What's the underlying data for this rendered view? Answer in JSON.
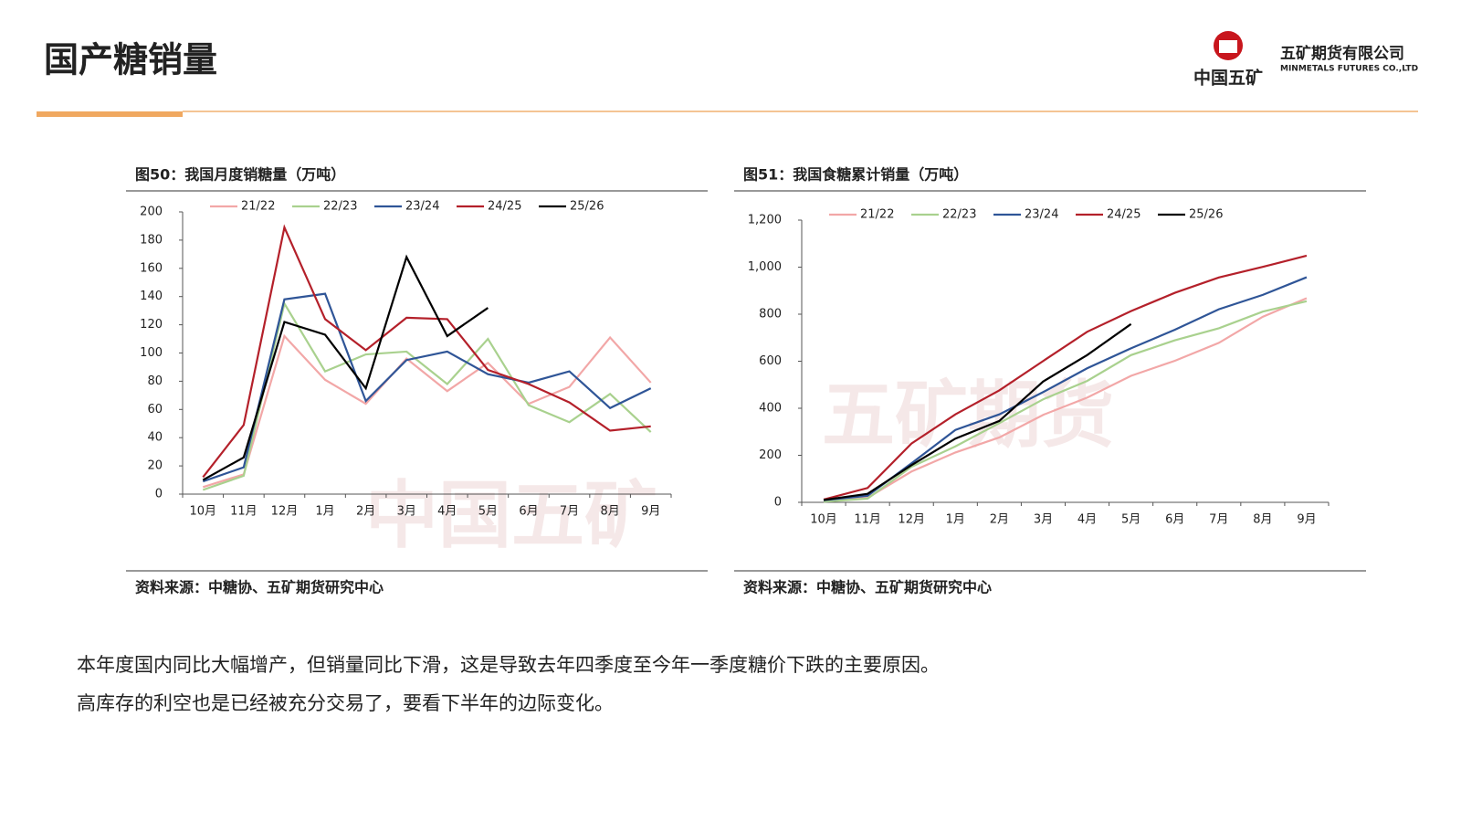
{
  "page_title": "国产糖销量",
  "logo": {
    "cn": "中国五矿",
    "company": "五矿期货有限公司",
    "company_en": "MINMETALS FUTURES CO.,LTD"
  },
  "watermarks": [
    "中国五矿",
    "五矿期货"
  ],
  "chart_data": [
    {
      "type": "line",
      "title": "图50：我国月度销糖量（万吨）",
      "source": "资料来源：中糖协、五矿期货研究中心",
      "categories": [
        "10月",
        "11月",
        "12月",
        "1月",
        "2月",
        "3月",
        "4月",
        "5月",
        "6月",
        "7月",
        "8月",
        "9月"
      ],
      "ylim": [
        0,
        200
      ],
      "yticks": [
        0,
        20,
        40,
        60,
        80,
        100,
        120,
        140,
        160,
        180,
        200
      ],
      "grid": false,
      "legend": "top",
      "series": [
        {
          "name": "21/22",
          "color": "#f2a7a7",
          "values": [
            5,
            14,
            112,
            81,
            64,
            96,
            73,
            93,
            64,
            76,
            111,
            79
          ]
        },
        {
          "name": "22/23",
          "color": "#a9d18e",
          "values": [
            3,
            13,
            135,
            87,
            99,
            101,
            78,
            110,
            63,
            51,
            71,
            44
          ]
        },
        {
          "name": "23/24",
          "color": "#2f5597",
          "values": [
            9,
            19,
            138,
            142,
            66,
            95,
            101,
            85,
            79,
            87,
            61,
            75
          ]
        },
        {
          "name": "24/25",
          "color": "#b4202a",
          "values": [
            12,
            49,
            189,
            124,
            102,
            125,
            124,
            88,
            78,
            65,
            45,
            48
          ]
        },
        {
          "name": "25/26",
          "color": "#000000",
          "values": [
            10,
            26,
            122,
            113,
            75,
            168,
            112,
            132,
            null,
            null,
            null,
            null
          ]
        }
      ]
    },
    {
      "type": "line",
      "title": "图51：我国食糖累计销量（万吨）",
      "source": "资料来源：中糖协、五矿期货研究中心",
      "categories": [
        "10月",
        "11月",
        "12月",
        "1月",
        "2月",
        "3月",
        "4月",
        "5月",
        "6月",
        "7月",
        "8月",
        "9月"
      ],
      "ylim": [
        0,
        1200
      ],
      "yticks": [
        0,
        200,
        400,
        600,
        800,
        {
          "value": 1000,
          "label": "1,000"
        },
        {
          "value": 1200,
          "label": "1,200"
        }
      ],
      "grid": false,
      "legend": "top",
      "series": [
        {
          "name": "21/22",
          "color": "#f2a7a7",
          "values": [
            5,
            19,
            131,
            212,
            276,
            372,
            445,
            538,
            602,
            678,
            789,
            868
          ]
        },
        {
          "name": "22/23",
          "color": "#a9d18e",
          "values": [
            3,
            16,
            151,
            238,
            337,
            438,
            516,
            626,
            689,
            740,
            811,
            855
          ]
        },
        {
          "name": "23/24",
          "color": "#2f5597",
          "values": [
            9,
            28,
            166,
            308,
            374,
            469,
            570,
            655,
            734,
            821,
            882,
            957
          ]
        },
        {
          "name": "24/25",
          "color": "#b4202a",
          "values": [
            12,
            61,
            250,
            374,
            476,
            601,
            725,
            813,
            891,
            956,
            1001,
            1049
          ]
        },
        {
          "name": "25/26",
          "color": "#000000",
          "values": [
            10,
            36,
            158,
            271,
            346,
            514,
            626,
            758,
            null,
            null,
            null,
            null
          ]
        }
      ]
    }
  ],
  "paragraphs": [
    "本年度国内同比大幅增产，但销量同比下滑，这是导致去年四季度至今年一季度糖价下跌的主要原因。",
    "高库存的利空也是已经被充分交易了，要看下半年的边际变化。"
  ]
}
